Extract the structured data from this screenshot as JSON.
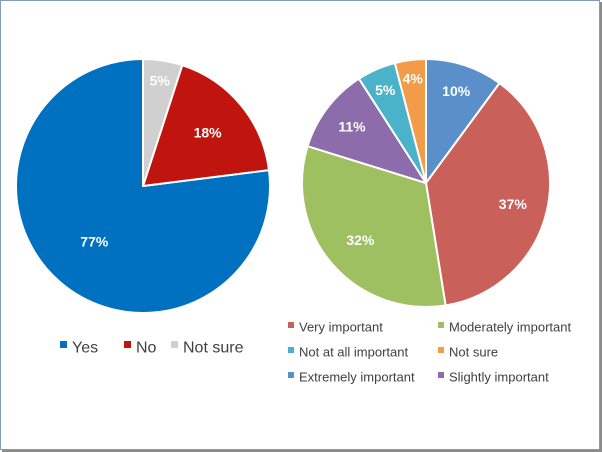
{
  "chart_data": [
    {
      "type": "pie",
      "categories": [
        "Yes",
        "No",
        "Not sure"
      ],
      "values": [
        77,
        18,
        5
      ],
      "labels": [
        "77%",
        "18%",
        "5%"
      ],
      "colors": [
        "#0070c0",
        "#c0150f",
        "#d0d0d0"
      ],
      "legend": [
        "Yes",
        "No",
        "Not sure"
      ],
      "legend_position": "bottom"
    },
    {
      "type": "pie",
      "categories": [
        "Extremely important",
        "Very important",
        "Moderately important",
        "Slightly important",
        "Not at all important",
        "Not sure"
      ],
      "values": [
        10,
        37,
        32,
        11,
        5,
        4
      ],
      "labels": [
        "10%",
        "37%",
        "32%",
        "11%",
        "5%",
        "4%"
      ],
      "colors": [
        "#5b8fc9",
        "#c9605a",
        "#9fc061",
        "#8c6cab",
        "#4bb3c9",
        "#f29b48"
      ],
      "legend": [
        "Very important",
        "Moderately important",
        "Not at all important",
        "Not sure",
        "Extremely important",
        "Slightly important"
      ],
      "legend_position": "bottom"
    }
  ]
}
